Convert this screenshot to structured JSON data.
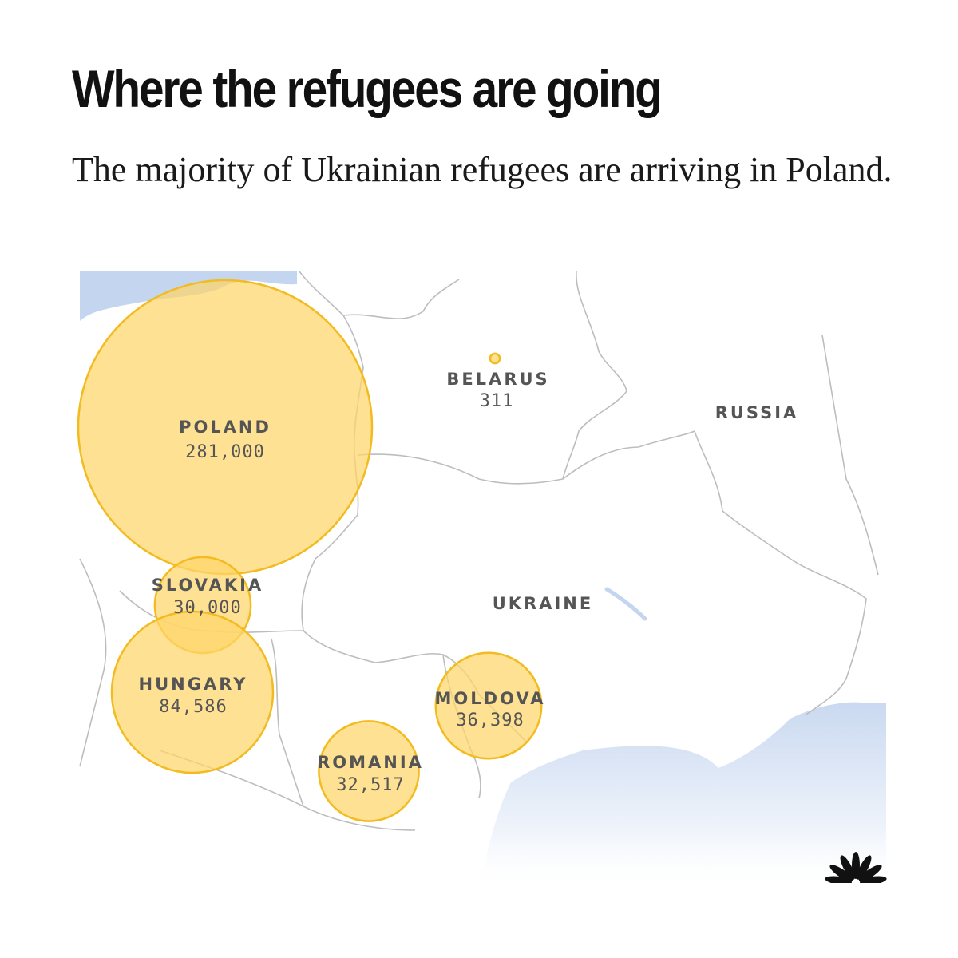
{
  "title": "Where the refugees are going",
  "subtitle": "The majority of Ukrainian refugees are arriving in Poland.",
  "colors": {
    "bubble_fill": "#fdd66a",
    "bubble_stroke": "#f2bb1f",
    "water": "#c4d5ef",
    "border": "#bdbdbd",
    "label": "#555555",
    "logo": "#111111"
  },
  "map": {
    "countries": [
      {
        "name": "POLAND",
        "value": "281,000",
        "refugees": 281000
      },
      {
        "name": "SLOVAKIA",
        "value": "30,000",
        "refugees": 30000
      },
      {
        "name": "HUNGARY",
        "value": "84,586",
        "refugees": 84586
      },
      {
        "name": "ROMANIA",
        "value": "32,517",
        "refugees": 32517
      },
      {
        "name": "MOLDOVA",
        "value": "36,398",
        "refugees": 36398
      },
      {
        "name": "BELARUS",
        "value": "311",
        "refugees": 311
      }
    ],
    "region_labels": [
      {
        "name": "RUSSIA"
      },
      {
        "name": "UKRAINE"
      }
    ]
  },
  "logo_icon": "peacock-logo-icon"
}
